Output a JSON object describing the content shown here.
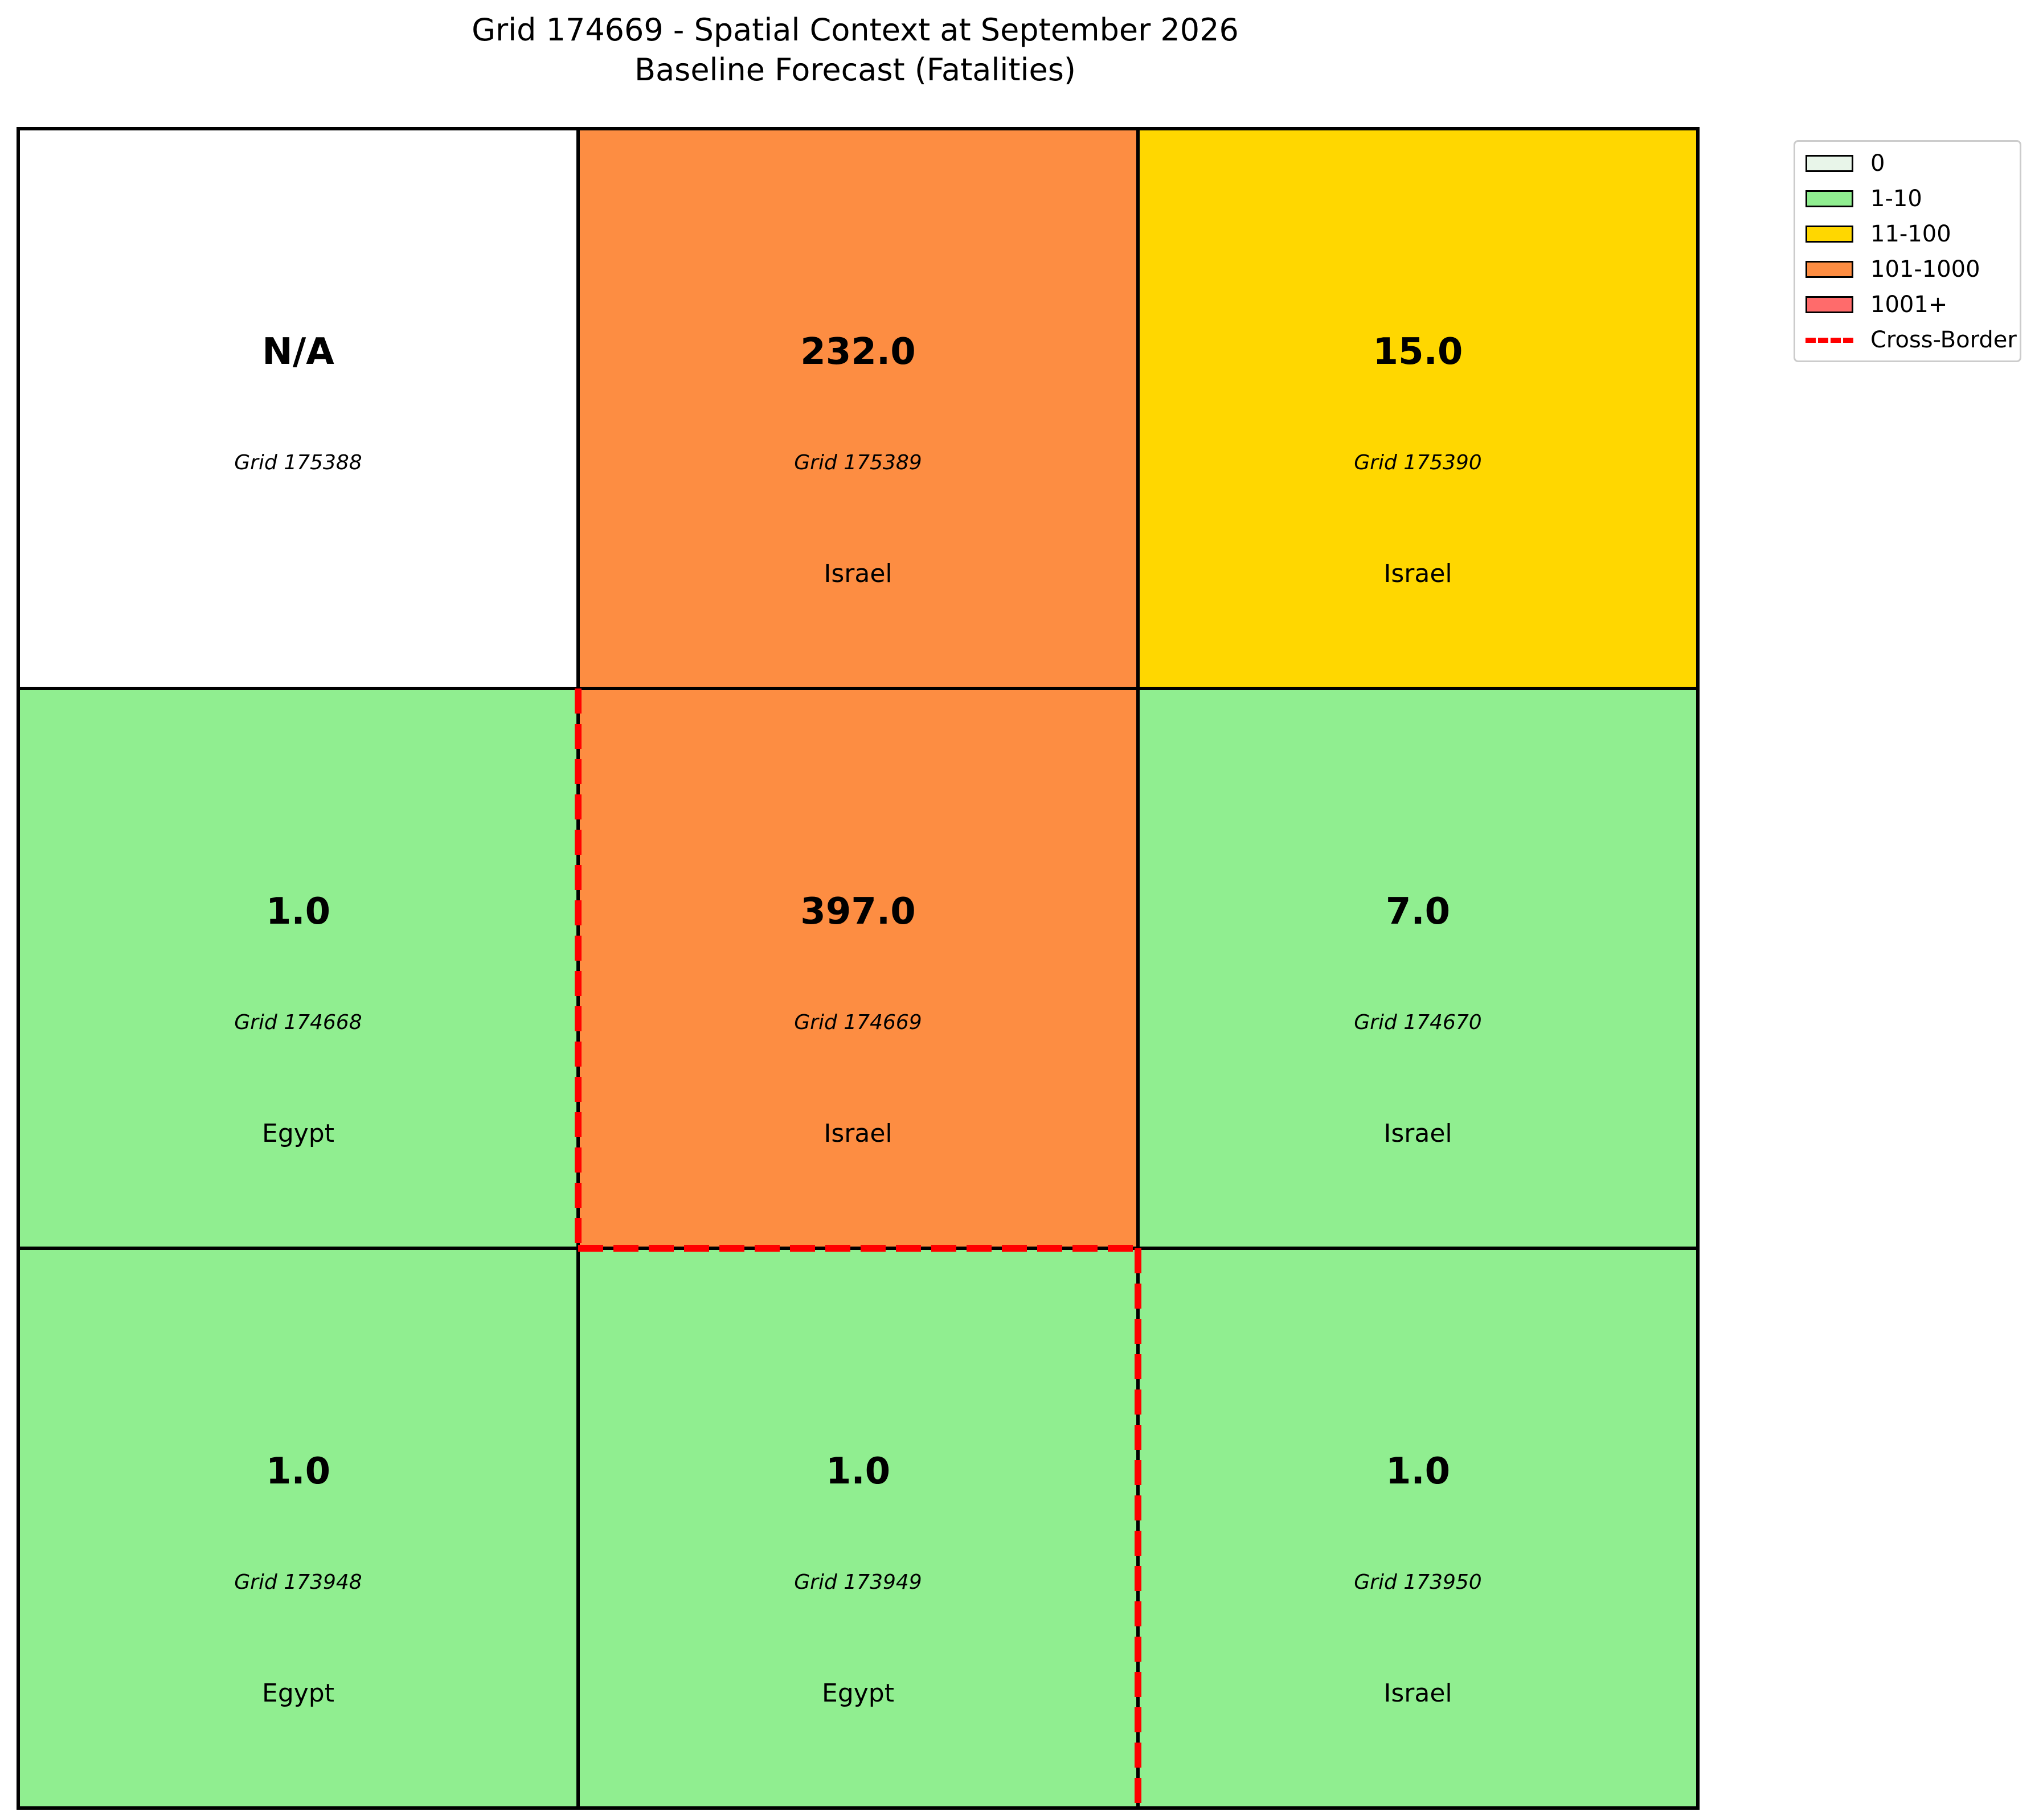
{
  "chart_data": {
    "type": "heatmap",
    "title": "Grid 174669 - Spatial Context at September 2026",
    "subtitle": "Baseline Forecast (Fatalities)",
    "rows": 3,
    "cols": 3,
    "cells": [
      {
        "row": 0,
        "col": 0,
        "value": "N/A",
        "grid": "Grid 175388",
        "country": "",
        "color": "#ffffff"
      },
      {
        "row": 0,
        "col": 1,
        "value": "232.0",
        "grid": "Grid 175389",
        "country": "Israel",
        "color": "#fd8d42"
      },
      {
        "row": 0,
        "col": 2,
        "value": "15.0",
        "grid": "Grid 175390",
        "country": "Israel",
        "color": "#ffd700"
      },
      {
        "row": 1,
        "col": 0,
        "value": "1.0",
        "grid": "Grid 174668",
        "country": "Egypt",
        "color": "#90ee90"
      },
      {
        "row": 1,
        "col": 1,
        "value": "397.0",
        "grid": "Grid 174669",
        "country": "Israel",
        "color": "#fd8d42"
      },
      {
        "row": 1,
        "col": 2,
        "value": "7.0",
        "grid": "Grid 174670",
        "country": "Israel",
        "color": "#90ee90"
      },
      {
        "row": 2,
        "col": 0,
        "value": "1.0",
        "grid": "Grid 173948",
        "country": "Egypt",
        "color": "#90ee90"
      },
      {
        "row": 2,
        "col": 1,
        "value": "1.0",
        "grid": "Grid 173949",
        "country": "Egypt",
        "color": "#90ee90"
      },
      {
        "row": 2,
        "col": 2,
        "value": "1.0",
        "grid": "Grid 173950",
        "country": "Israel",
        "color": "#90ee90"
      }
    ],
    "cross_border_edges": [
      {
        "side": "left",
        "row": 1,
        "col": 1
      },
      {
        "side": "bottom",
        "row": 1,
        "col": 1
      },
      {
        "side": "right",
        "row": 2,
        "col": 1
      }
    ],
    "legend": {
      "placement": "top-right, outside",
      "items": [
        {
          "label": "0",
          "kind": "patch",
          "color": "#e8f5e9"
        },
        {
          "label": "1-10",
          "kind": "patch",
          "color": "#90ee90"
        },
        {
          "label": "11-100",
          "kind": "patch",
          "color": "#ffd700"
        },
        {
          "label": "101-1000",
          "kind": "patch",
          "color": "#fd8d42"
        },
        {
          "label": "1001+",
          "kind": "patch",
          "color": "#ff6b6b"
        },
        {
          "label": "Cross-Border",
          "kind": "line",
          "color": "#ff0000"
        }
      ]
    }
  }
}
